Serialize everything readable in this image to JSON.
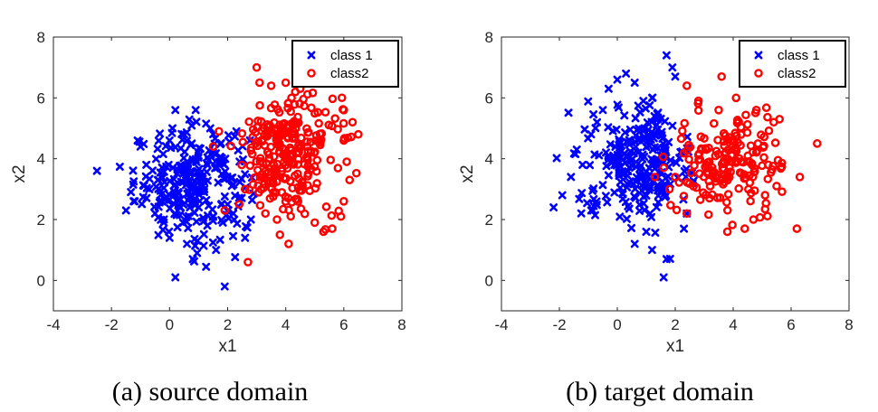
{
  "chart_data": [
    {
      "type": "scatter",
      "caption": "(a) source domain",
      "xlabel": "x1",
      "ylabel": "x2",
      "xlim": [
        -4,
        8
      ],
      "ylim": [
        -1,
        8
      ],
      "xticks": [
        -4,
        -2,
        0,
        2,
        4,
        6,
        8
      ],
      "yticks": [
        0,
        2,
        4,
        6,
        8
      ],
      "grid": false,
      "legend_position": "top-right",
      "series": [
        {
          "name": "class 1",
          "marker": "x",
          "color": "#0000ff",
          "points": [
            [
              -2.5,
              3.6
            ],
            [
              -1.5,
              2.3
            ],
            [
              -1.2,
              2.6
            ],
            [
              -1.0,
              4.4
            ],
            [
              -1.1,
              4.6
            ],
            [
              -0.8,
              3.8
            ],
            [
              -0.7,
              3.0
            ],
            [
              -0.5,
              2.2
            ],
            [
              -0.4,
              3.3
            ],
            [
              -0.2,
              1.9
            ],
            [
              0.0,
              4.6
            ],
            [
              0.1,
              5.0
            ],
            [
              0.2,
              5.6
            ],
            [
              0.3,
              2.9
            ],
            [
              0.4,
              3.7
            ],
            [
              0.5,
              4.8
            ],
            [
              0.7,
              2.4
            ],
            [
              0.8,
              0.7
            ],
            [
              0.9,
              5.6
            ],
            [
              1.0,
              4.1
            ],
            [
              1.2,
              3.0
            ],
            [
              1.3,
              1.8
            ],
            [
              1.4,
              5.0
            ],
            [
              1.5,
              2.1
            ],
            [
              1.6,
              1.0
            ],
            [
              1.8,
              3.5
            ],
            [
              1.9,
              -0.2
            ],
            [
              2.0,
              2.5
            ],
            [
              2.3,
              4.9
            ],
            [
              2.6,
              1.4
            ],
            [
              2.8,
              2.0
            ],
            [
              0.2,
              0.1
            ],
            [
              0.0,
              1.4
            ],
            [
              0.6,
              1.2
            ]
          ],
          "cluster": {
            "center": [
              0.8,
              3.2
            ],
            "spread": [
              1.0,
              0.9
            ],
            "count": 260,
            "xrange": [
              -2.6,
              2.9
            ],
            "yrange": [
              -0.3,
              5.7
            ]
          }
        },
        {
          "name": "class2",
          "marker": "o",
          "color": "#ff0000",
          "points": [
            [
              3.0,
              7.0
            ],
            [
              3.1,
              6.5
            ],
            [
              3.5,
              6.4
            ],
            [
              4.0,
              6.5
            ],
            [
              4.5,
              6.3
            ],
            [
              4.2,
              6.0
            ],
            [
              2.7,
              0.6
            ],
            [
              3.8,
              1.5
            ],
            [
              4.1,
              1.2
            ],
            [
              5.0,
              1.9
            ],
            [
              5.3,
              1.6
            ],
            [
              5.6,
              1.7
            ],
            [
              5.9,
              2.1
            ],
            [
              6.0,
              2.6
            ],
            [
              6.2,
              3.3
            ],
            [
              6.1,
              3.9
            ],
            [
              6.0,
              4.6
            ],
            [
              6.3,
              5.2
            ],
            [
              6.5,
              4.8
            ],
            [
              6.0,
              5.6
            ],
            [
              1.5,
              4.4
            ],
            [
              1.7,
              4.9
            ],
            [
              1.9,
              2.3
            ],
            [
              2.4,
              2.5
            ],
            [
              2.6,
              3.0
            ],
            [
              3.3,
              2.2
            ],
            [
              3.7,
              2.0
            ]
          ],
          "cluster": {
            "center": [
              4.1,
              4.2
            ],
            "spread": [
              0.8,
              0.9
            ],
            "count": 260,
            "xrange": [
              1.4,
              6.6
            ],
            "yrange": [
              0.6,
              7.0
            ]
          }
        }
      ]
    },
    {
      "type": "scatter",
      "caption": "(b) target domain",
      "xlabel": "x1",
      "ylabel": "x2",
      "xlim": [
        -4,
        8
      ],
      "ylim": [
        -1,
        8
      ],
      "xticks": [
        -4,
        -2,
        0,
        2,
        4,
        6,
        8
      ],
      "yticks": [
        0,
        2,
        4,
        6,
        8
      ],
      "grid": false,
      "legend_position": "top-right",
      "series": [
        {
          "name": "class 1",
          "marker": "x",
          "color": "#0000ff",
          "points": [
            [
              -2.2,
              2.4
            ],
            [
              -1.9,
              2.8
            ],
            [
              -1.6,
              3.4
            ],
            [
              -1.4,
              4.3
            ],
            [
              -1.2,
              3.8
            ],
            [
              -0.9,
              2.3
            ],
            [
              -0.7,
              5.2
            ],
            [
              -0.5,
              5.6
            ],
            [
              -0.3,
              6.3
            ],
            [
              0.0,
              6.6
            ],
            [
              0.3,
              6.8
            ],
            [
              0.6,
              6.5
            ],
            [
              0.9,
              5.9
            ],
            [
              1.2,
              6.0
            ],
            [
              1.7,
              7.4
            ],
            [
              1.9,
              7.0
            ],
            [
              2.0,
              6.7
            ],
            [
              1.0,
              1.6
            ],
            [
              1.2,
              1.0
            ],
            [
              1.7,
              0.7
            ],
            [
              1.6,
              0.1
            ],
            [
              0.6,
              1.2
            ],
            [
              2.3,
              1.7
            ],
            [
              2.4,
              2.2
            ],
            [
              2.6,
              3.2
            ]
          ],
          "cluster": {
            "center": [
              0.7,
              3.9
            ],
            "spread": [
              0.9,
              0.9
            ],
            "count": 260,
            "xrange": [
              -2.3,
              2.8
            ],
            "yrange": [
              0.0,
              7.5
            ]
          }
        },
        {
          "name": "class2",
          "marker": "o",
          "color": "#ff0000",
          "points": [
            [
              2.4,
              6.4
            ],
            [
              2.8,
              5.9
            ],
            [
              3.6,
              6.7
            ],
            [
              3.5,
              5.6
            ],
            [
              4.1,
              6.0
            ],
            [
              4.8,
              5.6
            ],
            [
              5.4,
              5.2
            ],
            [
              5.6,
              5.3
            ],
            [
              6.9,
              4.5
            ],
            [
              6.3,
              3.4
            ],
            [
              6.2,
              1.7
            ],
            [
              3.8,
              1.6
            ],
            [
              4.4,
              1.7
            ],
            [
              4.7,
              2.0
            ],
            [
              5.1,
              2.8
            ],
            [
              5.5,
              3.1
            ],
            [
              2.4,
              2.2
            ],
            [
              1.3,
              3.4
            ],
            [
              1.6,
              3.7
            ],
            [
              1.8,
              3.0
            ],
            [
              2.0,
              3.4
            ]
          ],
          "cluster": {
            "center": [
              3.8,
              3.9
            ],
            "spread": [
              0.9,
              0.8
            ],
            "count": 180,
            "xrange": [
              1.2,
              7.0
            ],
            "yrange": [
              1.5,
              6.8
            ]
          }
        }
      ]
    }
  ]
}
